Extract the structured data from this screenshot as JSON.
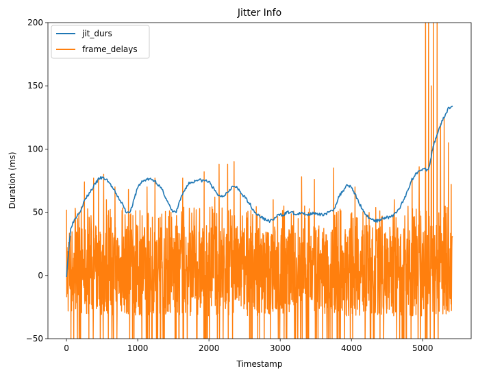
{
  "chart_data": {
    "type": "line",
    "title": "Jitter Info",
    "xlabel": "Timestamp",
    "ylabel": "Duration (ms)",
    "xlim": [
      -260,
      5680
    ],
    "ylim": [
      -50,
      200
    ],
    "xticks": [
      0,
      1000,
      2000,
      3000,
      4000,
      5000
    ],
    "xtick_labels": [
      "0",
      "1000",
      "2000",
      "3000",
      "4000",
      "5000"
    ],
    "yticks": [
      -50,
      0,
      50,
      100,
      150,
      200
    ],
    "ytick_labels": [
      "−50",
      "0",
      "50",
      "100",
      "150",
      "200"
    ],
    "grid": false,
    "legend_position": "top-left",
    "colors": {
      "jit_durs": "#1f77b4",
      "frame_delays": "#ff7f0e"
    },
    "series": [
      {
        "name": "jit_durs",
        "x": [
          0,
          60,
          120,
          200,
          260,
          320,
          400,
          460,
          520,
          580,
          640,
          700,
          780,
          840,
          900,
          960,
          1000,
          1060,
          1120,
          1180,
          1240,
          1300,
          1360,
          1420,
          1480,
          1540,
          1600,
          1660,
          1720,
          1780,
          1840,
          1900,
          1960,
          2020,
          2080,
          2140,
          2200,
          2260,
          2320,
          2380,
          2440,
          2500,
          2560,
          2620,
          2680,
          2740,
          2800,
          2860,
          2920,
          2980,
          3040,
          3100,
          3160,
          3220,
          3280,
          3340,
          3400,
          3460,
          3520,
          3580,
          3640,
          3700,
          3760,
          3820,
          3880,
          3940,
          4000,
          4060,
          4120,
          4180,
          4240,
          4300,
          4360,
          4420,
          4480,
          4540,
          4600,
          4660,
          4720,
          4780,
          4840,
          4900,
          4960,
          5020,
          5080,
          5140,
          5180,
          5240,
          5300,
          5360,
          5420
        ],
        "y": [
          0,
          38,
          45,
          52,
          60,
          65,
          72,
          77,
          77,
          75,
          70,
          64,
          57,
          50,
          51,
          62,
          70,
          74,
          76,
          76,
          75,
          71,
          66,
          58,
          51,
          50,
          60,
          68,
          73,
          74,
          76,
          75,
          75,
          73,
          67,
          63,
          63,
          66,
          70,
          70,
          66,
          62,
          58,
          52,
          48,
          46,
          44,
          43,
          45,
          48,
          48,
          50,
          50,
          48,
          49,
          49,
          48,
          50,
          48,
          48,
          49,
          50,
          53,
          62,
          67,
          72,
          70,
          63,
          56,
          50,
          46,
          44,
          43,
          45,
          46,
          46,
          48,
          52,
          58,
          66,
          75,
          80,
          84,
          84,
          83,
          100,
          108,
          118,
          125,
          132,
          134
        ]
      },
      {
        "name": "frame_delays",
        "x_range": [
          0,
          5420
        ],
        "baseline_range": [
          -32,
          40
        ],
        "spikes": [
          {
            "x": 0,
            "y": 52
          },
          {
            "x": 100,
            "y": -50
          },
          {
            "x": 250,
            "y": 74
          },
          {
            "x": 380,
            "y": 77
          },
          {
            "x": 450,
            "y": 76
          },
          {
            "x": 520,
            "y": 80
          },
          {
            "x": 560,
            "y": 60
          },
          {
            "x": 680,
            "y": 70
          },
          {
            "x": 870,
            "y": 68
          },
          {
            "x": 1130,
            "y": 70
          },
          {
            "x": 1240,
            "y": 77
          },
          {
            "x": 1630,
            "y": 77
          },
          {
            "x": 1930,
            "y": 82
          },
          {
            "x": 2080,
            "y": 62
          },
          {
            "x": 2140,
            "y": 88
          },
          {
            "x": 2260,
            "y": 88
          },
          {
            "x": 2350,
            "y": 90
          },
          {
            "x": 2440,
            "y": 65
          },
          {
            "x": 2900,
            "y": 60
          },
          {
            "x": 3050,
            "y": 55
          },
          {
            "x": 3300,
            "y": 78
          },
          {
            "x": 3480,
            "y": 76
          },
          {
            "x": 3750,
            "y": 85
          },
          {
            "x": 4050,
            "y": 70
          },
          {
            "x": 4600,
            "y": 60
          },
          {
            "x": 4850,
            "y": 76
          },
          {
            "x": 4950,
            "y": 86
          },
          {
            "x": 5040,
            "y": 200
          },
          {
            "x": 5080,
            "y": 200
          },
          {
            "x": 5120,
            "y": 150
          },
          {
            "x": 5150,
            "y": 200
          },
          {
            "x": 5200,
            "y": 200
          },
          {
            "x": 5250,
            "y": 120
          },
          {
            "x": 5300,
            "y": 125
          },
          {
            "x": 5360,
            "y": 105
          },
          {
            "x": 5400,
            "y": 72
          }
        ]
      }
    ]
  }
}
